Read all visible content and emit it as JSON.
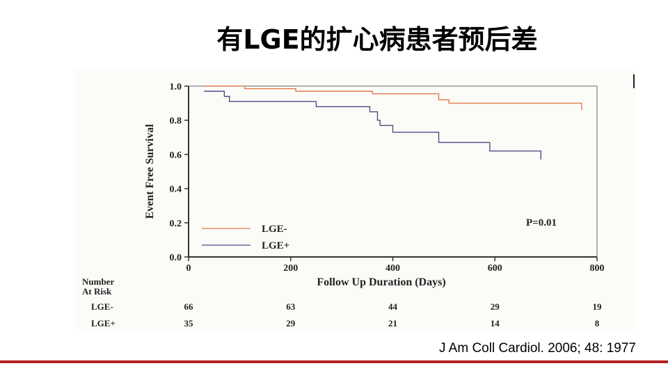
{
  "slide": {
    "title": "有LGE的扩心病患者预后差",
    "citation": "J Am Coll Cardiol. 2006; 48: 1977"
  },
  "chart_data": {
    "type": "line",
    "step": true,
    "xlabel": "Follow Up Duration (Days)",
    "ylabel": "Event Free Survival",
    "xlim": [
      0,
      800
    ],
    "ylim": [
      0,
      1.0
    ],
    "x_ticks": [
      0,
      200,
      400,
      600,
      800
    ],
    "x_tick_labels": [
      "0",
      "200",
      "400",
      "600",
      "800"
    ],
    "y_ticks": [
      0,
      0.2,
      0.4,
      0.6,
      0.8,
      1.0
    ],
    "y_tick_labels": [
      "0.0",
      "0.2",
      "0.4",
      "0.6",
      "0.8",
      "1.0"
    ],
    "annotation": "P=0.01",
    "legend_position": "bottom-left",
    "series": [
      {
        "name": "LGE-",
        "color": "#e07a4a",
        "x": [
          30,
          110,
          210,
          360,
          490,
          510,
          770,
          770
        ],
        "y": [
          1.0,
          0.985,
          0.97,
          0.955,
          0.92,
          0.9,
          0.89,
          0.86
        ]
      },
      {
        "name": "LGE+",
        "color": "#4a4e86",
        "x": [
          30,
          70,
          80,
          250,
          355,
          370,
          375,
          400,
          490,
          590,
          690,
          690
        ],
        "y": [
          0.97,
          0.94,
          0.91,
          0.88,
          0.85,
          0.8,
          0.77,
          0.73,
          0.67,
          0.62,
          0.62,
          0.57
        ]
      }
    ],
    "risk_table": {
      "header": [
        "Number",
        "At Risk"
      ],
      "times": [
        0,
        200,
        400,
        600,
        800
      ],
      "rows": [
        {
          "label": "LGE-",
          "counts": [
            "66",
            "63",
            "44",
            "29",
            "19"
          ]
        },
        {
          "label": "LGE+",
          "counts": [
            "35",
            "29",
            "21",
            "14",
            "8"
          ]
        }
      ]
    }
  }
}
